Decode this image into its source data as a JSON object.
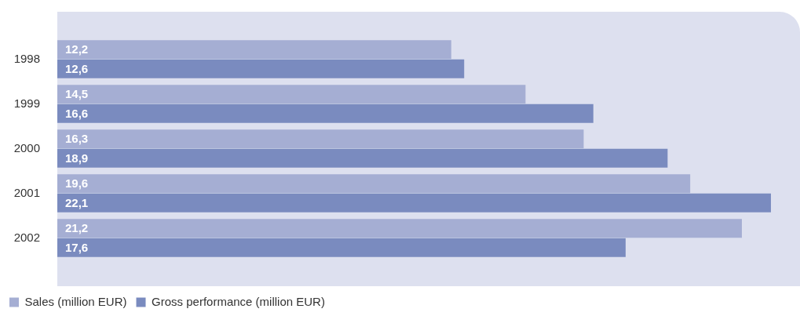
{
  "chart_data": {
    "type": "bar",
    "orientation": "horizontal",
    "categories": [
      "1998",
      "1999",
      "2000",
      "2001",
      "2002"
    ],
    "series": [
      {
        "name": "Sales (million EUR)",
        "color": "#a5aed3",
        "values": [
          12.2,
          14.5,
          16.3,
          19.6,
          21.2
        ],
        "value_labels": [
          "12,2",
          "14,5",
          "16,3",
          "19,6",
          "21,2"
        ]
      },
      {
        "name": "Gross performance (million EUR)",
        "color": "#7a8bbf",
        "values": [
          12.6,
          16.6,
          18.9,
          22.1,
          17.6
        ],
        "value_labels": [
          "12,6",
          "16,6",
          "18,9",
          "22,1",
          "17,6"
        ]
      }
    ],
    "xlim": [
      0,
      23
    ],
    "tick_labels": "y",
    "grid": false,
    "legend": "bottom left"
  }
}
